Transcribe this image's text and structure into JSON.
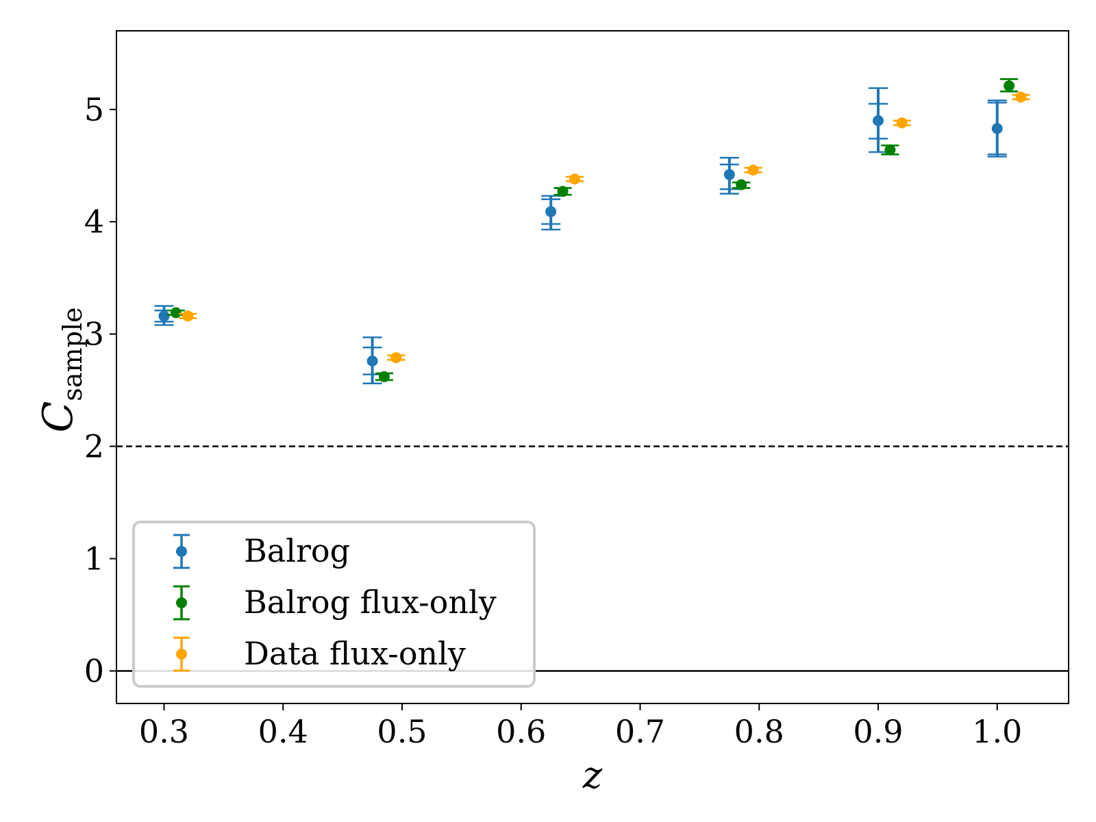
{
  "chart_data": {
    "type": "scatter",
    "title": "",
    "xlabel": "z",
    "ylabel_main": "C",
    "ylabel_sub": "sample",
    "xlim": [
      0.26,
      1.06
    ],
    "ylim": [
      -0.29,
      5.7
    ],
    "x_ticks": [
      0.3,
      0.4,
      0.5,
      0.6,
      0.7,
      0.8,
      0.9,
      1.0
    ],
    "x_tick_labels": [
      "0.3",
      "0.4",
      "0.5",
      "0.6",
      "0.7",
      "0.8",
      "0.9",
      "1.0"
    ],
    "y_ticks": [
      0,
      1,
      2,
      3,
      4,
      5
    ],
    "y_tick_labels": [
      "0",
      "1",
      "2",
      "3",
      "4",
      "5"
    ],
    "reference_lines": [
      {
        "y": 2,
        "style": "dashed",
        "color": "#000000"
      },
      {
        "y": 0,
        "style": "solid",
        "color": "#000000"
      }
    ],
    "legend_position": "lower-left",
    "series": [
      {
        "name": "Balrog",
        "color": "#1f77b4",
        "points": [
          {
            "x": 0.3,
            "y": 3.16,
            "err_inner": [
              3.11,
              3.21
            ],
            "err_outer": [
              3.08,
              3.25
            ]
          },
          {
            "x": 0.475,
            "y": 2.76,
            "err_inner": [
              2.64,
              2.88
            ],
            "err_outer": [
              2.56,
              2.97
            ]
          },
          {
            "x": 0.625,
            "y": 4.09,
            "err_inner": [
              3.98,
              4.2
            ],
            "err_outer": [
              3.93,
              4.23
            ]
          },
          {
            "x": 0.775,
            "y": 4.42,
            "err_inner": [
              4.29,
              4.51
            ],
            "err_outer": [
              4.25,
              4.57
            ]
          },
          {
            "x": 0.9,
            "y": 4.9,
            "err_inner": [
              4.74,
              5.05
            ],
            "err_outer": [
              4.62,
              5.19
            ]
          },
          {
            "x": 1.0,
            "y": 4.83,
            "err_inner": [
              4.6,
              5.06
            ],
            "err_outer": [
              4.58,
              5.08
            ]
          }
        ]
      },
      {
        "name": "Balrog flux-only",
        "color": "#008000",
        "points": [
          {
            "x": 0.31,
            "y": 3.19,
            "err_inner": [
              3.17,
              3.21
            ],
            "err_outer": [
              3.17,
              3.21
            ]
          },
          {
            "x": 0.485,
            "y": 2.62,
            "err_inner": [
              2.59,
              2.65
            ],
            "err_outer": [
              2.59,
              2.65
            ]
          },
          {
            "x": 0.635,
            "y": 4.27,
            "err_inner": [
              4.24,
              4.3
            ],
            "err_outer": [
              4.24,
              4.3
            ]
          },
          {
            "x": 0.785,
            "y": 4.33,
            "err_inner": [
              4.3,
              4.35
            ],
            "err_outer": [
              4.3,
              4.35
            ]
          },
          {
            "x": 0.91,
            "y": 4.64,
            "err_inner": [
              4.6,
              4.68
            ],
            "err_outer": [
              4.6,
              4.68
            ]
          },
          {
            "x": 1.01,
            "y": 5.21,
            "err_inner": [
              5.16,
              5.27
            ],
            "err_outer": [
              5.16,
              5.27
            ]
          }
        ]
      },
      {
        "name": "Data flux-only",
        "color": "#ffa500",
        "points": [
          {
            "x": 0.32,
            "y": 3.16,
            "err_inner": [
              3.14,
              3.18
            ],
            "err_outer": [
              3.14,
              3.18
            ]
          },
          {
            "x": 0.495,
            "y": 2.79,
            "err_inner": [
              2.77,
              2.81
            ],
            "err_outer": [
              2.77,
              2.81
            ]
          },
          {
            "x": 0.645,
            "y": 4.38,
            "err_inner": [
              4.36,
              4.4
            ],
            "err_outer": [
              4.36,
              4.4
            ]
          },
          {
            "x": 0.795,
            "y": 4.46,
            "err_inner": [
              4.44,
              4.48
            ],
            "err_outer": [
              4.44,
              4.48
            ]
          },
          {
            "x": 0.92,
            "y": 4.88,
            "err_inner": [
              4.86,
              4.9
            ],
            "err_outer": [
              4.86,
              4.9
            ]
          },
          {
            "x": 1.02,
            "y": 5.11,
            "err_inner": [
              5.09,
              5.13
            ],
            "err_outer": [
              5.09,
              5.13
            ]
          }
        ]
      }
    ]
  }
}
